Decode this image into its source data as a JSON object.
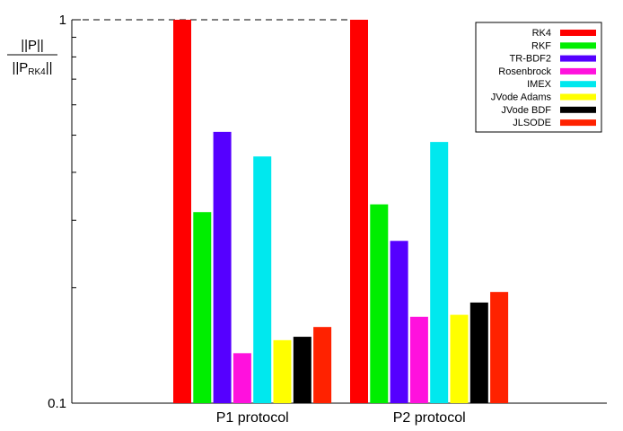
{
  "chart_data": {
    "type": "bar",
    "y_scale": "log",
    "ylim": [
      0.1,
      1
    ],
    "ylabel": {
      "numerator": "||P||",
      "denominator_main": "||P",
      "denominator_sub": "RK4",
      "denominator_end": "||"
    },
    "ytick_labels": [
      "0.1",
      "1"
    ],
    "categories": [
      "P1 protocol",
      "P2 protocol"
    ],
    "legend_position": "top-right",
    "reference_line": 1,
    "series": [
      {
        "name": "RK4",
        "color": "#ff0000",
        "values": [
          1.0,
          1.0
        ]
      },
      {
        "name": "RKF",
        "color": "#00ee00",
        "values": [
          0.315,
          0.33
        ]
      },
      {
        "name": "TR-BDF2",
        "color": "#5500ff",
        "values": [
          0.51,
          0.265
        ]
      },
      {
        "name": "Rosenbrock",
        "color": "#ff11dd",
        "values": [
          0.135,
          0.168
        ]
      },
      {
        "name": "IMEX",
        "color": "#00e8ee",
        "values": [
          0.44,
          0.48
        ]
      },
      {
        "name": "JVode Adams",
        "color": "#ffff00",
        "values": [
          0.146,
          0.17
        ]
      },
      {
        "name": "JVode BDF",
        "color": "#000000",
        "values": [
          0.149,
          0.183
        ]
      },
      {
        "name": "JLSODE",
        "color": "#ff2200",
        "values": [
          0.158,
          0.195
        ]
      }
    ]
  }
}
